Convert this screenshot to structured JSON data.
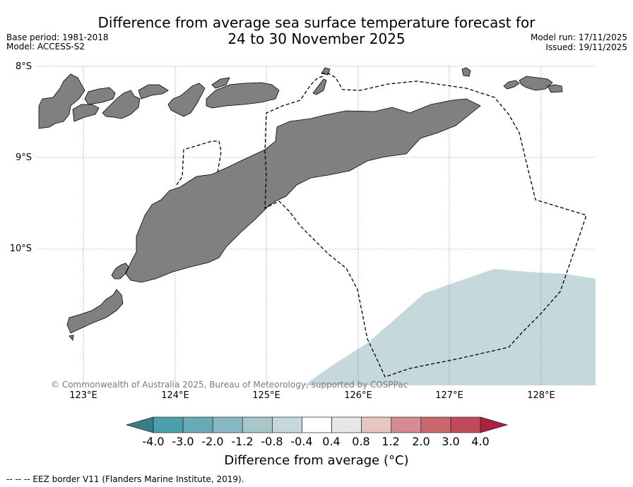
{
  "title": {
    "line1": "Difference from average sea surface temperature forecast for",
    "line2": "24 to 30 November 2025"
  },
  "meta_left": {
    "base_period": "Base period: 1981-2018",
    "model": "Model: ACCESS-S2"
  },
  "meta_right": {
    "model_run": "Model run: 17/11/2025",
    "issued": "Issued: 19/11/2025"
  },
  "map": {
    "lat_labels": [
      "8°S",
      "9°S",
      "10°S"
    ],
    "lon_labels": [
      "123°E",
      "124°E",
      "125°E",
      "126°E",
      "127°E",
      "128°E"
    ],
    "copyright": "© Commonwealth of Australia 2025, Bureau of Meteorology, supported by COSPPac",
    "land_color": "#808080",
    "anomaly_fill_color": "#c5d8dc"
  },
  "colorbar": {
    "ticks": [
      "-4.0",
      "-3.0",
      "-2.0",
      "-1.2",
      "-0.8",
      "-0.4",
      "0.4",
      "0.8",
      "1.2",
      "2.0",
      "3.0",
      "4.0"
    ],
    "colors": [
      "#4aa0ad",
      "#68abb7",
      "#88b9c3",
      "#a9c7cb",
      "#c6d8dc",
      "#ffffff",
      "#e8e6e6",
      "#e6c6c1",
      "#d68c95",
      "#c9686f",
      "#bf4a59"
    ],
    "under_color": "#377e87",
    "over_color": "#ad2240",
    "label": "Difference from average (°C)"
  },
  "legend": {
    "eez": "--  --  -- EEZ border V11 (Flanders Marine Institute, 2019)."
  }
}
